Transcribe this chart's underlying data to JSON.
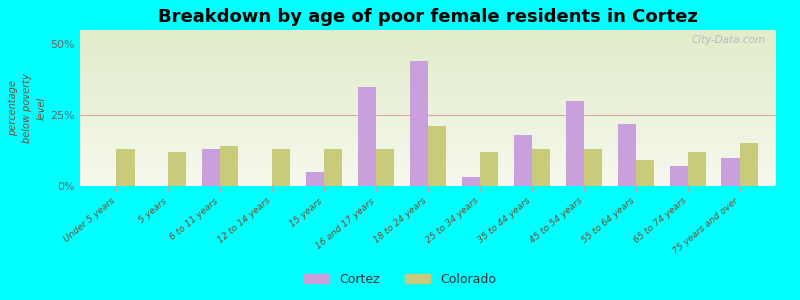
{
  "title": "Breakdown by age of poor female residents in Cortez",
  "categories": [
    "Under 5 years",
    "5 years",
    "6 to 11 years",
    "12 to 14 years",
    "15 years",
    "16 and 17 years",
    "18 to 24 years",
    "25 to 34 years",
    "35 to 44 years",
    "45 to 54 years",
    "55 to 64 years",
    "65 to 74 years",
    "75 years and over"
  ],
  "cortez": [
    0,
    0,
    13,
    0,
    5,
    35,
    44,
    3,
    18,
    30,
    22,
    7,
    10
  ],
  "colorado": [
    13,
    12,
    14,
    13,
    13,
    13,
    21,
    12,
    13,
    13,
    9,
    12,
    15
  ],
  "ylabel": "percentage\nbelow poverty\nlevel",
  "ylim": [
    0,
    55
  ],
  "yticks": [
    0,
    25,
    50
  ],
  "ytick_labels": [
    "0%",
    "25%",
    "50%"
  ],
  "cortez_color": "#c9a0dc",
  "colorado_color": "#c8cc7a",
  "bg_color_top": "#e0ecca",
  "bg_color_bottom": "#f0f4e4",
  "figure_bg": "#00ffff",
  "bar_width": 0.35,
  "watermark": "City-Data.com"
}
